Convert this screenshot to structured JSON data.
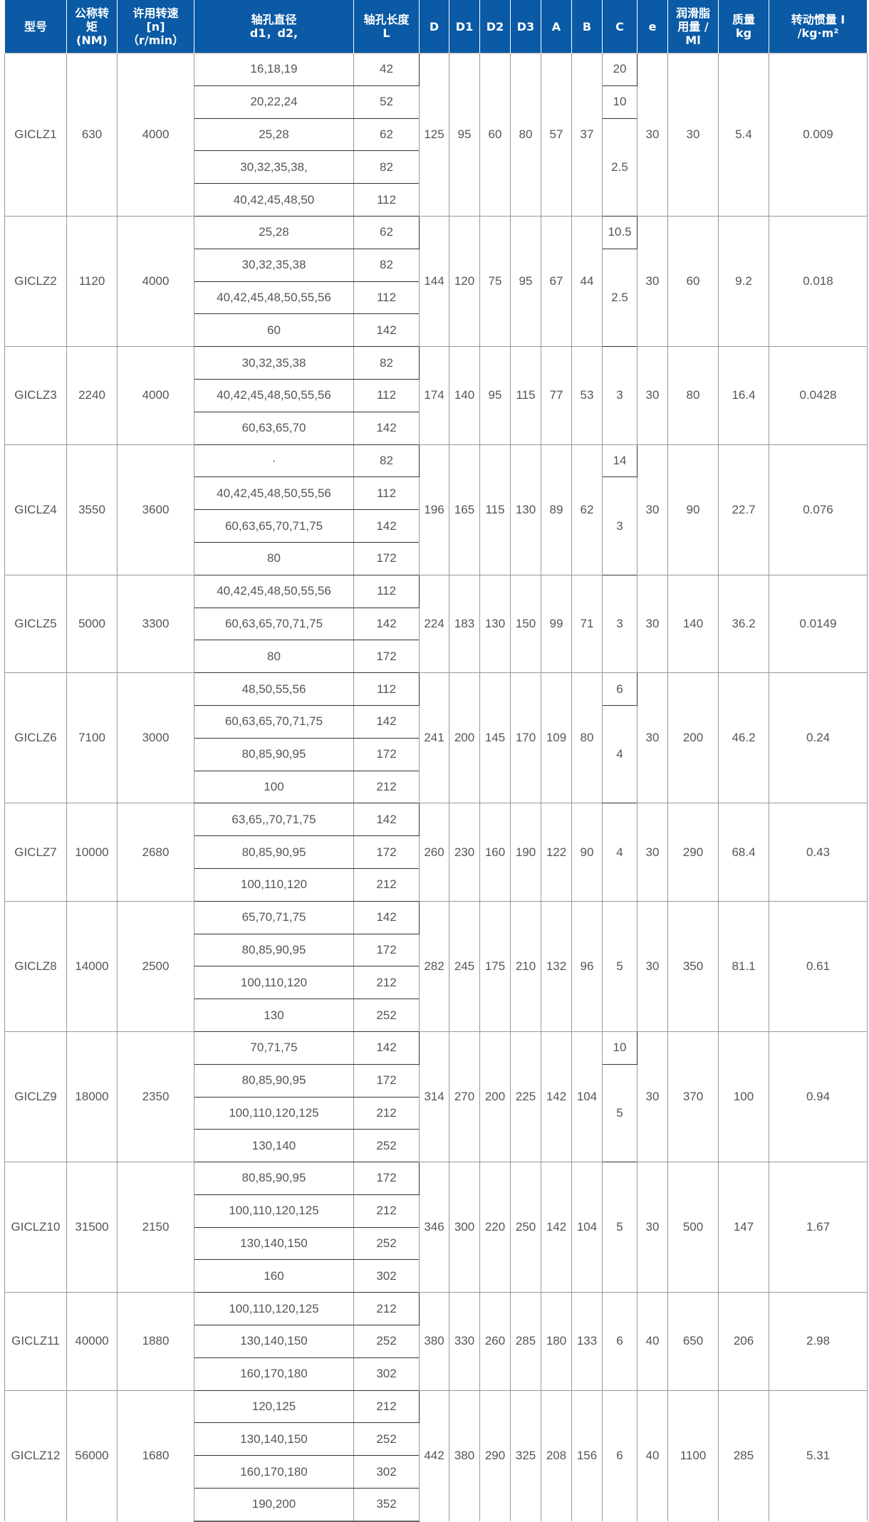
{
  "colors": {
    "header_bg": "#0a5aa5",
    "header_text": "#ffffff",
    "cell_text": "#555555"
  },
  "headers": [
    "型号",
    "公称转\n矩\n(NM)",
    "许用转速\n[n]\n（r/min）",
    "轴孔直径\nd1，d2,",
    "轴孔长度\nL",
    "D",
    "D1",
    "D2",
    "D3",
    "A",
    "B",
    "C",
    "e",
    "润滑脂\n用量 /\nMl",
    "质量\nkg",
    "转动惯量 I\n/kg·m²"
  ],
  "rows": [
    {
      "model": "GICLZ1",
      "torque": "630",
      "speed": "4000",
      "bores": [
        [
          "16,18,19",
          "42"
        ],
        [
          "20,22,24",
          "52"
        ],
        [
          "25,28",
          "62"
        ],
        [
          "30,32,35,38,",
          "82"
        ],
        [
          "40,42,45,48,50",
          "112"
        ]
      ],
      "D": "125",
      "D1": "95",
      "D2": "60",
      "D3": "80",
      "A": "57",
      "B": "37",
      "C": [
        [
          "20",
          1
        ],
        [
          "10",
          1
        ],
        [
          "2.5",
          3
        ]
      ],
      "e": "30",
      "grease": "30",
      "mass": "5.4",
      "inertia": "0.009"
    },
    {
      "model": "GICLZ2",
      "torque": "1120",
      "speed": "4000",
      "bores": [
        [
          "25,28",
          "62"
        ],
        [
          "30,32,35,38",
          "82"
        ],
        [
          "40,42,45,48,50,55,56",
          "112"
        ],
        [
          "60",
          "142"
        ]
      ],
      "D": "144",
      "D1": "120",
      "D2": "75",
      "D3": "95",
      "A": "67",
      "B": "44",
      "C": [
        [
          "10.5",
          1
        ],
        [
          "2.5",
          3
        ]
      ],
      "e": "30",
      "grease": "60",
      "mass": "9.2",
      "inertia": "0.018"
    },
    {
      "model": "GICLZ3",
      "torque": "2240",
      "speed": "4000",
      "bores": [
        [
          "30,32,35,38",
          "82"
        ],
        [
          "40,42,45,48,50,55,56",
          "112"
        ],
        [
          "60,63,65,70",
          "142"
        ]
      ],
      "D": "174",
      "D1": "140",
      "D2": "95",
      "D3": "115",
      "A": "77",
      "B": "53",
      "C": [
        [
          "3",
          3
        ]
      ],
      "e": "30",
      "grease": "80",
      "mass": "16.4",
      "inertia": "0.0428"
    },
    {
      "model": "GICLZ4",
      "torque": "3550",
      "speed": "3600",
      "bores": [
        [
          "·",
          "82"
        ],
        [
          "40,42,45,48,50,55,56",
          "112"
        ],
        [
          "60,63,65,70,71,75",
          "142"
        ],
        [
          "80",
          "172"
        ]
      ],
      "D": "196",
      "D1": "165",
      "D2": "115",
      "D3": "130",
      "A": "89",
      "B": "62",
      "C": [
        [
          "14",
          1
        ],
        [
          "3",
          3
        ]
      ],
      "e": "30",
      "grease": "90",
      "mass": "22.7",
      "inertia": "0.076"
    },
    {
      "model": "GICLZ5",
      "torque": "5000",
      "speed": "3300",
      "bores": [
        [
          "40,42,45,48,50,55,56",
          "112"
        ],
        [
          "60,63,65,70,71,75",
          "142"
        ],
        [
          "80",
          "172"
        ]
      ],
      "D": "224",
      "D1": "183",
      "D2": "130",
      "D3": "150",
      "A": "99",
      "B": "71",
      "C": [
        [
          "3",
          3
        ]
      ],
      "e": "30",
      "grease": "140",
      "mass": "36.2",
      "inertia": "0.0149"
    },
    {
      "model": "GICLZ6",
      "torque": "7100",
      "speed": "3000",
      "bores": [
        [
          "48,50,55,56",
          "112"
        ],
        [
          "60,63,65,70,71,75",
          "142"
        ],
        [
          "80,85,90,95",
          "172"
        ],
        [
          "100",
          "212"
        ]
      ],
      "D": "241",
      "D1": "200",
      "D2": "145",
      "D3": "170",
      "A": "109",
      "B": "80",
      "C": [
        [
          "6",
          1
        ],
        [
          "4",
          3
        ]
      ],
      "e": "30",
      "grease": "200",
      "mass": "46.2",
      "inertia": "0.24"
    },
    {
      "model": "GICLZ7",
      "torque": "10000",
      "speed": "2680",
      "bores": [
        [
          "63,65,,70,71,75",
          "142"
        ],
        [
          "80,85,90,95",
          "172"
        ],
        [
          "100,110,120",
          "212"
        ]
      ],
      "D": "260",
      "D1": "230",
      "D2": "160",
      "D3": "190",
      "A": "122",
      "B": "90",
      "C": [
        [
          "4",
          3
        ]
      ],
      "e": "30",
      "grease": "290",
      "mass": "68.4",
      "inertia": "0.43"
    },
    {
      "model": "GICLZ8",
      "torque": "14000",
      "speed": "2500",
      "bores": [
        [
          "65,70,71,75",
          "142"
        ],
        [
          "80,85,90,95",
          "172"
        ],
        [
          "100,110,120",
          "212"
        ],
        [
          "130",
          "252"
        ]
      ],
      "D": "282",
      "D1": "245",
      "D2": "175",
      "D3": "210",
      "A": "132",
      "B": "96",
      "C": [
        [
          "5",
          4
        ]
      ],
      "e": "30",
      "grease": "350",
      "mass": "81.1",
      "inertia": "0.61"
    },
    {
      "model": "GICLZ9",
      "torque": "18000",
      "speed": "2350",
      "bores": [
        [
          "70,71,75",
          "142"
        ],
        [
          "80,85,90,95",
          "172"
        ],
        [
          "100,110,120,125",
          "212"
        ],
        [
          "130,140",
          "252"
        ]
      ],
      "D": "314",
      "D1": "270",
      "D2": "200",
      "D3": "225",
      "A": "142",
      "B": "104",
      "C": [
        [
          "10",
          1
        ],
        [
          "5",
          3
        ]
      ],
      "e": "30",
      "grease": "370",
      "mass": "100",
      "inertia": "0.94"
    },
    {
      "model": "GICLZ10",
      "torque": "31500",
      "speed": "2150",
      "bores": [
        [
          "80,85,90,95",
          "172"
        ],
        [
          "100,110,120,125",
          "212"
        ],
        [
          "130,140,150",
          "252"
        ],
        [
          "160",
          "302"
        ]
      ],
      "D": "346",
      "D1": "300",
      "D2": "220",
      "D3": "250",
      "A": "142",
      "B": "104",
      "C": [
        [
          "5",
          4
        ]
      ],
      "e": "30",
      "grease": "500",
      "mass": "147",
      "inertia": "1.67"
    },
    {
      "model": "GICLZ11",
      "torque": "40000",
      "speed": "1880",
      "bores": [
        [
          "100,110,120,125",
          "212"
        ],
        [
          "130,140,150",
          "252"
        ],
        [
          "160,170,180",
          "302"
        ]
      ],
      "D": "380",
      "D1": "330",
      "D2": "260",
      "D3": "285",
      "A": "180",
      "B": "133",
      "C": [
        [
          "6",
          3
        ]
      ],
      "e": "40",
      "grease": "650",
      "mass": "206",
      "inertia": "2.98"
    },
    {
      "model": "GICLZ12",
      "torque": "56000",
      "speed": "1680",
      "bores": [
        [
          "120,125",
          "212"
        ],
        [
          "130,140,150",
          "252"
        ],
        [
          "160,170,180",
          "302"
        ],
        [
          "190,200",
          "352"
        ]
      ],
      "D": "442",
      "D1": "380",
      "D2": "290",
      "D3": "325",
      "A": "208",
      "B": "156",
      "C": [
        [
          "6",
          4
        ]
      ],
      "e": "40",
      "grease": "1100",
      "mass": "285",
      "inertia": "5.31"
    }
  ]
}
